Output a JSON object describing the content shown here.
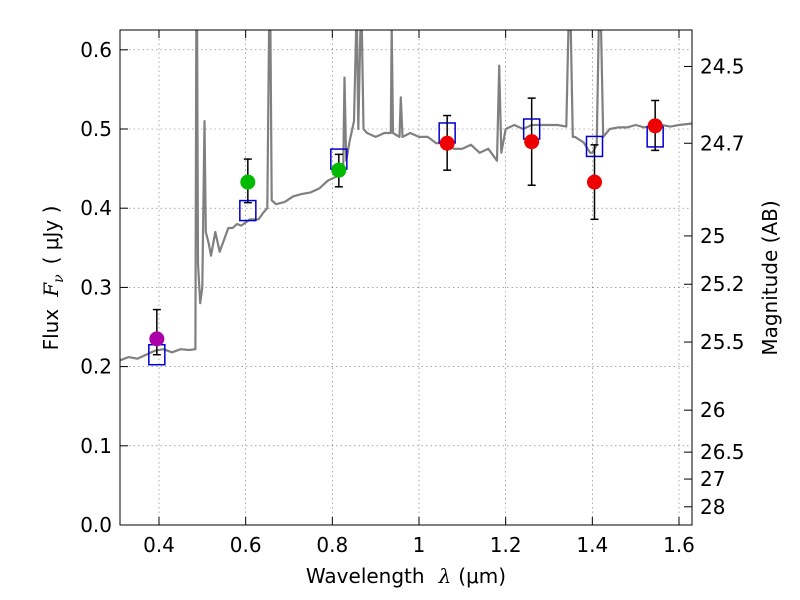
{
  "chart_data": {
    "type": "scatter",
    "xlabel_prefix": "Wavelength",
    "xlabel_var": "λ",
    "xlabel_unit": "(μm)",
    "ylabel_prefix": "Flux",
    "ylabel_var": "F",
    "ylabel_sub": "ν",
    "ylabel_unit": "( μJy )",
    "y2label": "Magnitude (AB)",
    "xlim": [
      0.31,
      1.63
    ],
    "ylim": [
      0.0,
      0.625
    ],
    "xticks": [
      0.4,
      0.6,
      0.8,
      1.0,
      1.2,
      1.4,
      1.6
    ],
    "xtick_labels": [
      "0.4",
      "0.6",
      "0.8",
      "1",
      "1.2",
      "1.4",
      "1.6"
    ],
    "yticks": [
      0.0,
      0.1,
      0.2,
      0.3,
      0.4,
      0.5,
      0.6
    ],
    "ytick_labels": [
      "0.0",
      "0.1",
      "0.2",
      "0.3",
      "0.4",
      "0.5",
      "0.6"
    ],
    "mag_ticks": [
      {
        "label": "24.5",
        "flux": 0.579
      },
      {
        "label": "24.7",
        "flux": 0.482
      },
      {
        "label": "25",
        "flux": 0.365
      },
      {
        "label": "25.2",
        "flux": 0.304
      },
      {
        "label": "25.5",
        "flux": 0.231
      },
      {
        "label": "26",
        "flux": 0.145
      },
      {
        "label": "26.5",
        "flux": 0.092
      },
      {
        "label": "27",
        "flux": 0.058
      },
      {
        "label": "28",
        "flux": 0.023
      }
    ],
    "grid": true,
    "colors": {
      "template": "#808080",
      "model_box": "#0000cc",
      "errorbar": "#000000",
      "magenta": "#aa00aa",
      "green": "#00bb00",
      "red": "#ee0000"
    },
    "template_spectrum": [
      [
        0.31,
        0.208
      ],
      [
        0.33,
        0.212
      ],
      [
        0.35,
        0.21
      ],
      [
        0.37,
        0.215
      ],
      [
        0.39,
        0.22
      ],
      [
        0.41,
        0.222
      ],
      [
        0.43,
        0.218
      ],
      [
        0.45,
        0.222
      ],
      [
        0.47,
        0.221
      ],
      [
        0.484,
        0.222
      ],
      [
        0.486,
        0.63
      ],
      [
        0.488,
        0.63
      ],
      [
        0.49,
        0.33
      ],
      [
        0.495,
        0.28
      ],
      [
        0.5,
        0.3
      ],
      [
        0.505,
        0.51
      ],
      [
        0.508,
        0.37
      ],
      [
        0.515,
        0.355
      ],
      [
        0.52,
        0.34
      ],
      [
        0.53,
        0.37
      ],
      [
        0.54,
        0.345
      ],
      [
        0.55,
        0.36
      ],
      [
        0.56,
        0.375
      ],
      [
        0.57,
        0.375
      ],
      [
        0.58,
        0.38
      ],
      [
        0.59,
        0.378
      ],
      [
        0.61,
        0.386
      ],
      [
        0.63,
        0.386
      ],
      [
        0.64,
        0.394
      ],
      [
        0.65,
        0.4
      ],
      [
        0.654,
        0.63
      ],
      [
        0.657,
        0.63
      ],
      [
        0.66,
        0.41
      ],
      [
        0.67,
        0.405
      ],
      [
        0.69,
        0.408
      ],
      [
        0.71,
        0.415
      ],
      [
        0.73,
        0.418
      ],
      [
        0.75,
        0.42
      ],
      [
        0.77,
        0.425
      ],
      [
        0.79,
        0.435
      ],
      [
        0.81,
        0.44
      ],
      [
        0.825,
        0.448
      ],
      [
        0.828,
        0.565
      ],
      [
        0.832,
        0.46
      ],
      [
        0.84,
        0.485
      ],
      [
        0.85,
        0.51
      ],
      [
        0.855,
        0.63
      ],
      [
        0.857,
        0.63
      ],
      [
        0.86,
        0.5
      ],
      [
        0.865,
        0.63
      ],
      [
        0.868,
        0.63
      ],
      [
        0.872,
        0.5
      ],
      [
        0.88,
        0.495
      ],
      [
        0.9,
        0.49
      ],
      [
        0.92,
        0.495
      ],
      [
        0.935,
        0.495
      ],
      [
        0.937,
        0.63
      ],
      [
        0.94,
        0.495
      ],
      [
        0.955,
        0.49
      ],
      [
        0.958,
        0.54
      ],
      [
        0.962,
        0.49
      ],
      [
        0.98,
        0.495
      ],
      [
        1.0,
        0.49
      ],
      [
        1.02,
        0.49
      ],
      [
        1.04,
        0.482
      ],
      [
        1.06,
        0.483
      ],
      [
        1.08,
        0.475
      ],
      [
        1.1,
        0.475
      ],
      [
        1.12,
        0.48
      ],
      [
        1.14,
        0.47
      ],
      [
        1.16,
        0.475
      ],
      [
        1.18,
        0.46
      ],
      [
        1.185,
        0.58
      ],
      [
        1.19,
        0.47
      ],
      [
        1.2,
        0.5
      ],
      [
        1.22,
        0.505
      ],
      [
        1.24,
        0.5
      ],
      [
        1.26,
        0.505
      ],
      [
        1.28,
        0.505
      ],
      [
        1.3,
        0.505
      ],
      [
        1.32,
        0.505
      ],
      [
        1.34,
        0.503
      ],
      [
        1.345,
        0.63
      ],
      [
        1.35,
        0.63
      ],
      [
        1.355,
        0.49
      ],
      [
        1.36,
        0.49
      ],
      [
        1.38,
        0.483
      ],
      [
        1.395,
        0.47
      ],
      [
        1.4,
        0.47
      ],
      [
        1.41,
        0.48
      ],
      [
        1.415,
        0.63
      ],
      [
        1.42,
        0.63
      ],
      [
        1.425,
        0.49
      ],
      [
        1.44,
        0.5
      ],
      [
        1.46,
        0.502
      ],
      [
        1.48,
        0.502
      ],
      [
        1.5,
        0.505
      ],
      [
        1.52,
        0.502
      ],
      [
        1.54,
        0.505
      ],
      [
        1.56,
        0.505
      ],
      [
        1.58,
        0.503
      ],
      [
        1.6,
        0.505
      ],
      [
        1.63,
        0.507
      ]
    ],
    "model_points": [
      {
        "x": 0.395,
        "y": 0.215
      },
      {
        "x": 0.605,
        "y": 0.397
      },
      {
        "x": 0.815,
        "y": 0.462
      },
      {
        "x": 1.065,
        "y": 0.495
      },
      {
        "x": 1.26,
        "y": 0.5
      },
      {
        "x": 1.405,
        "y": 0.478
      },
      {
        "x": 1.545,
        "y": 0.49
      }
    ],
    "observed_points": [
      {
        "x": 0.395,
        "y": 0.235,
        "err_lo": 0.215,
        "err_hi": 0.272,
        "color": "magenta"
      },
      {
        "x": 0.605,
        "y": 0.433,
        "err_lo": 0.407,
        "err_hi": 0.462,
        "color": "green"
      },
      {
        "x": 0.815,
        "y": 0.448,
        "err_lo": 0.427,
        "err_hi": 0.468,
        "color": "green"
      },
      {
        "x": 1.065,
        "y": 0.482,
        "err_lo": 0.448,
        "err_hi": 0.517,
        "color": "red"
      },
      {
        "x": 1.26,
        "y": 0.484,
        "err_lo": 0.429,
        "err_hi": 0.539,
        "color": "red"
      },
      {
        "x": 1.405,
        "y": 0.433,
        "err_lo": 0.386,
        "err_hi": 0.48,
        "color": "red"
      },
      {
        "x": 1.545,
        "y": 0.504,
        "err_lo": 0.473,
        "err_hi": 0.536,
        "color": "red"
      }
    ]
  }
}
